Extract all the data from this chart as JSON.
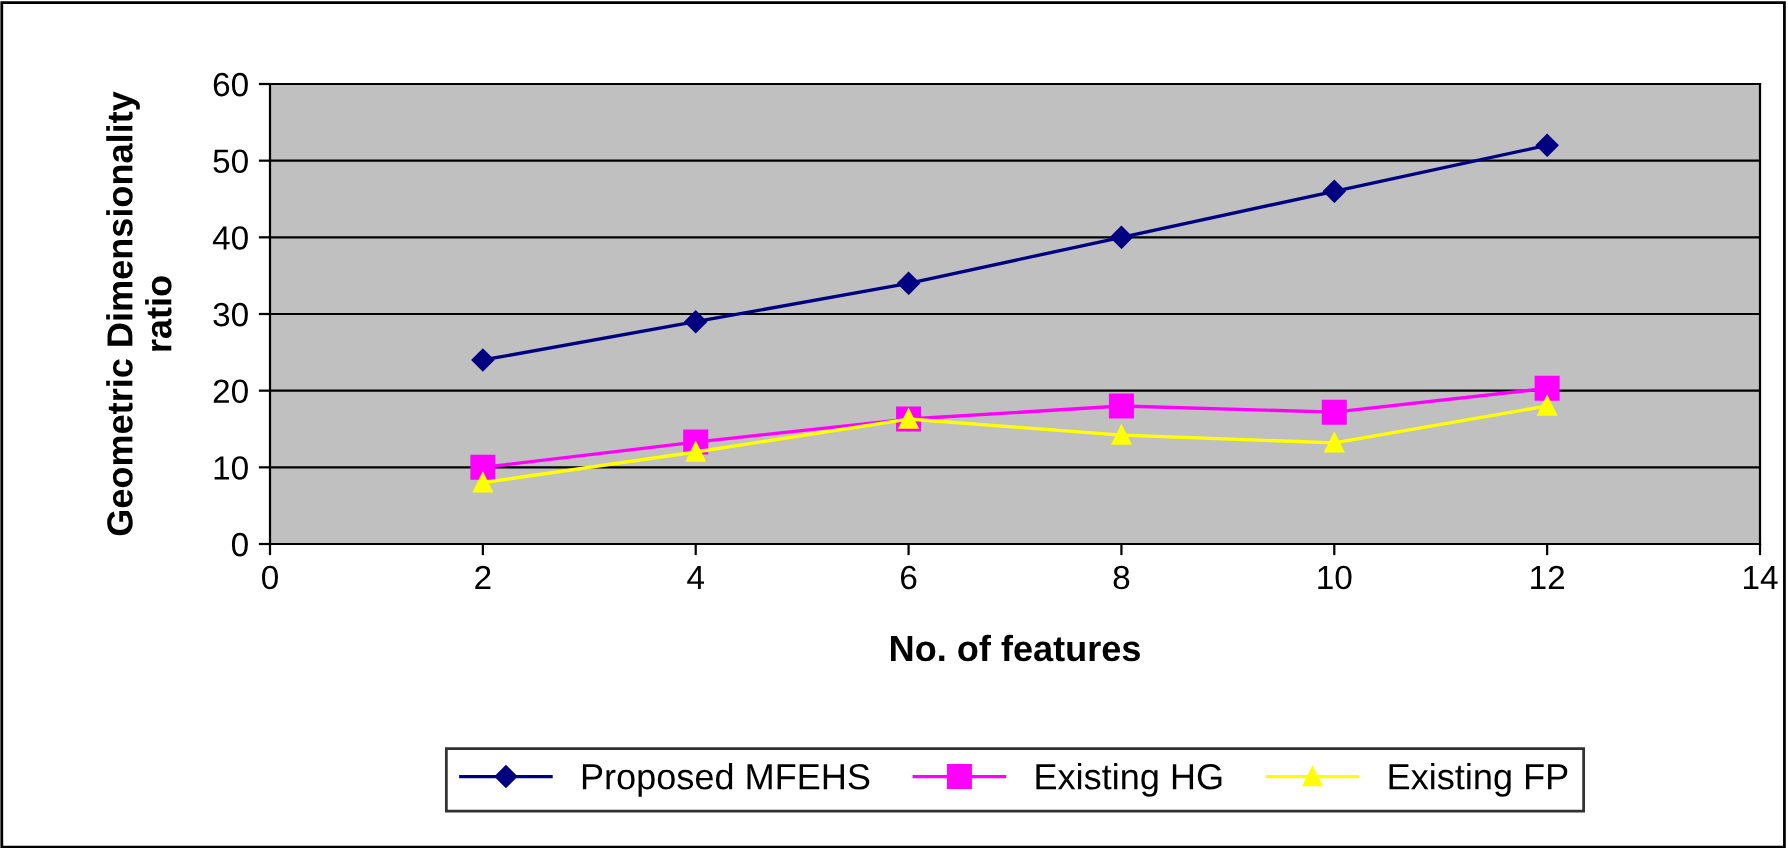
{
  "chart_data": {
    "type": "line",
    "xlabel": "No. of features",
    "ylabel": "Geometric Dimensionality\nratio",
    "x": [
      2,
      4,
      6,
      8,
      10,
      12
    ],
    "series": [
      {
        "name": "Proposed MFEHS",
        "color": "#000080",
        "marker": "diamond",
        "values": [
          24,
          29,
          34,
          40,
          46,
          52
        ]
      },
      {
        "name": "Existing HG",
        "color": "#ff00ff",
        "marker": "square",
        "values": [
          10,
          13.3,
          16.3,
          18,
          17.2,
          20.3
        ]
      },
      {
        "name": "Existing FP",
        "color": "#ffff00",
        "marker": "triangle",
        "values": [
          8,
          12,
          16.3,
          14.2,
          13.2,
          18
        ]
      }
    ],
    "xlim": [
      0,
      14
    ],
    "xticks": [
      0,
      2,
      4,
      6,
      8,
      10,
      12,
      14
    ],
    "ylim": [
      0,
      60
    ],
    "yticks": [
      0,
      10,
      20,
      30,
      40,
      50,
      60
    ],
    "grid": "y",
    "legend": "bottom",
    "line_style": "solid"
  }
}
